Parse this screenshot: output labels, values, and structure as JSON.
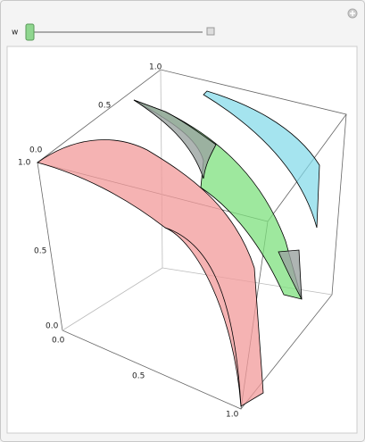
{
  "control": {
    "label": "w"
  },
  "axes": {
    "top": [
      "0.0",
      "0.5",
      "1.0"
    ],
    "left": [
      "1.0",
      "0.5",
      "0.0"
    ],
    "bottom": [
      "0.0",
      "0.5",
      "1.0"
    ]
  }
}
